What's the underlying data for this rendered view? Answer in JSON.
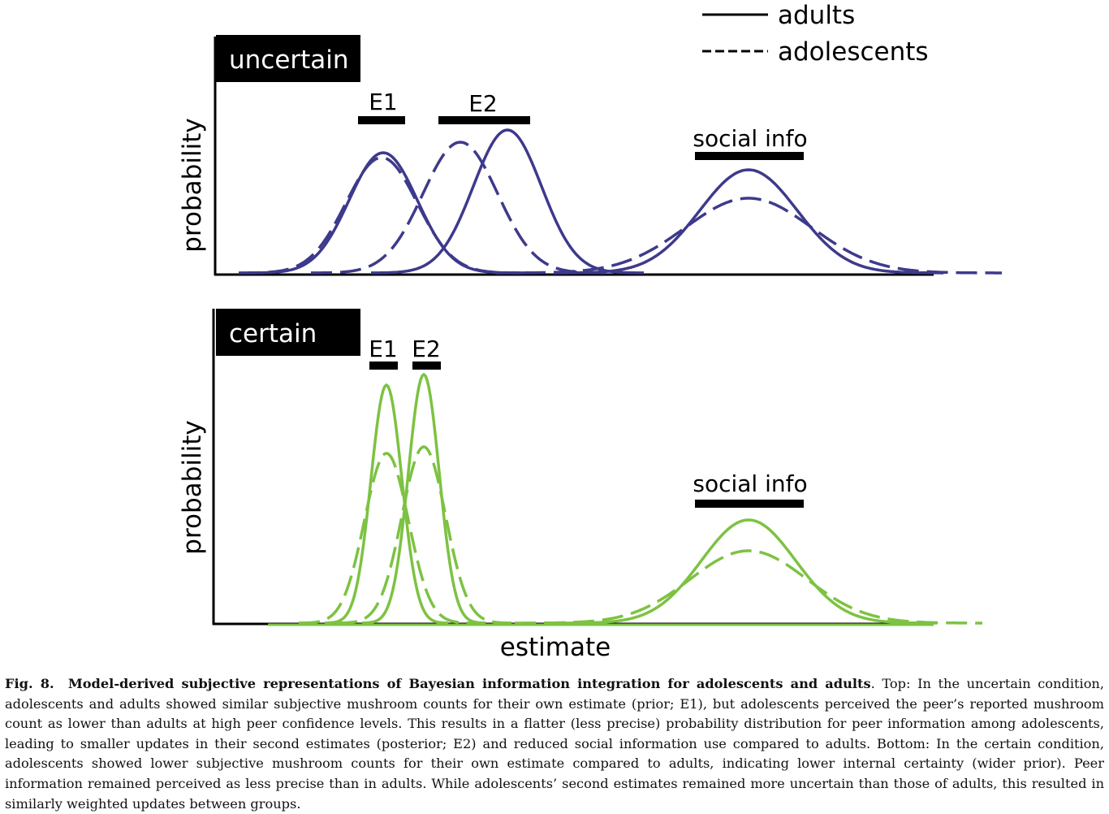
{
  "figure": {
    "legend": [
      "adults",
      "adolescents"
    ],
    "panels": [
      {
        "label": "uncertain",
        "y_label": "probability",
        "markers": [
          "E1",
          "E2",
          "social info"
        ]
      },
      {
        "label": "certain",
        "y_label": "probability",
        "markers": [
          "E1",
          "E2",
          "social info"
        ]
      }
    ],
    "x_label": "estimate"
  },
  "caption": {
    "label": "Fig. 8.",
    "title": "Model-derived subjective representations of Bayesian information integration for adolescents and adults",
    "text": ". Top: In the uncertain condition, adolescents and adults showed similar subjective mushroom counts for their own estimate (prior; E1), but adolescents perceived the peer’s reported mushroom count as lower than adults at high peer confidence levels. This results in a flatter (less precise) probability distribution for peer information among adolescents, leading to smaller updates in their second estimates (posterior; E2) and reduced social information use compared to adults. Bottom: In the certain condition, adolescents showed lower subjective mushroom counts for their own estimate compared to adults, indicating lower internal certainty (wider prior). Peer information remained perceived as less precise than in adults. While adolescents’ second estimates remained more uncertain than those of adults, this resulted in similarly weighted updates between groups."
  }
}
